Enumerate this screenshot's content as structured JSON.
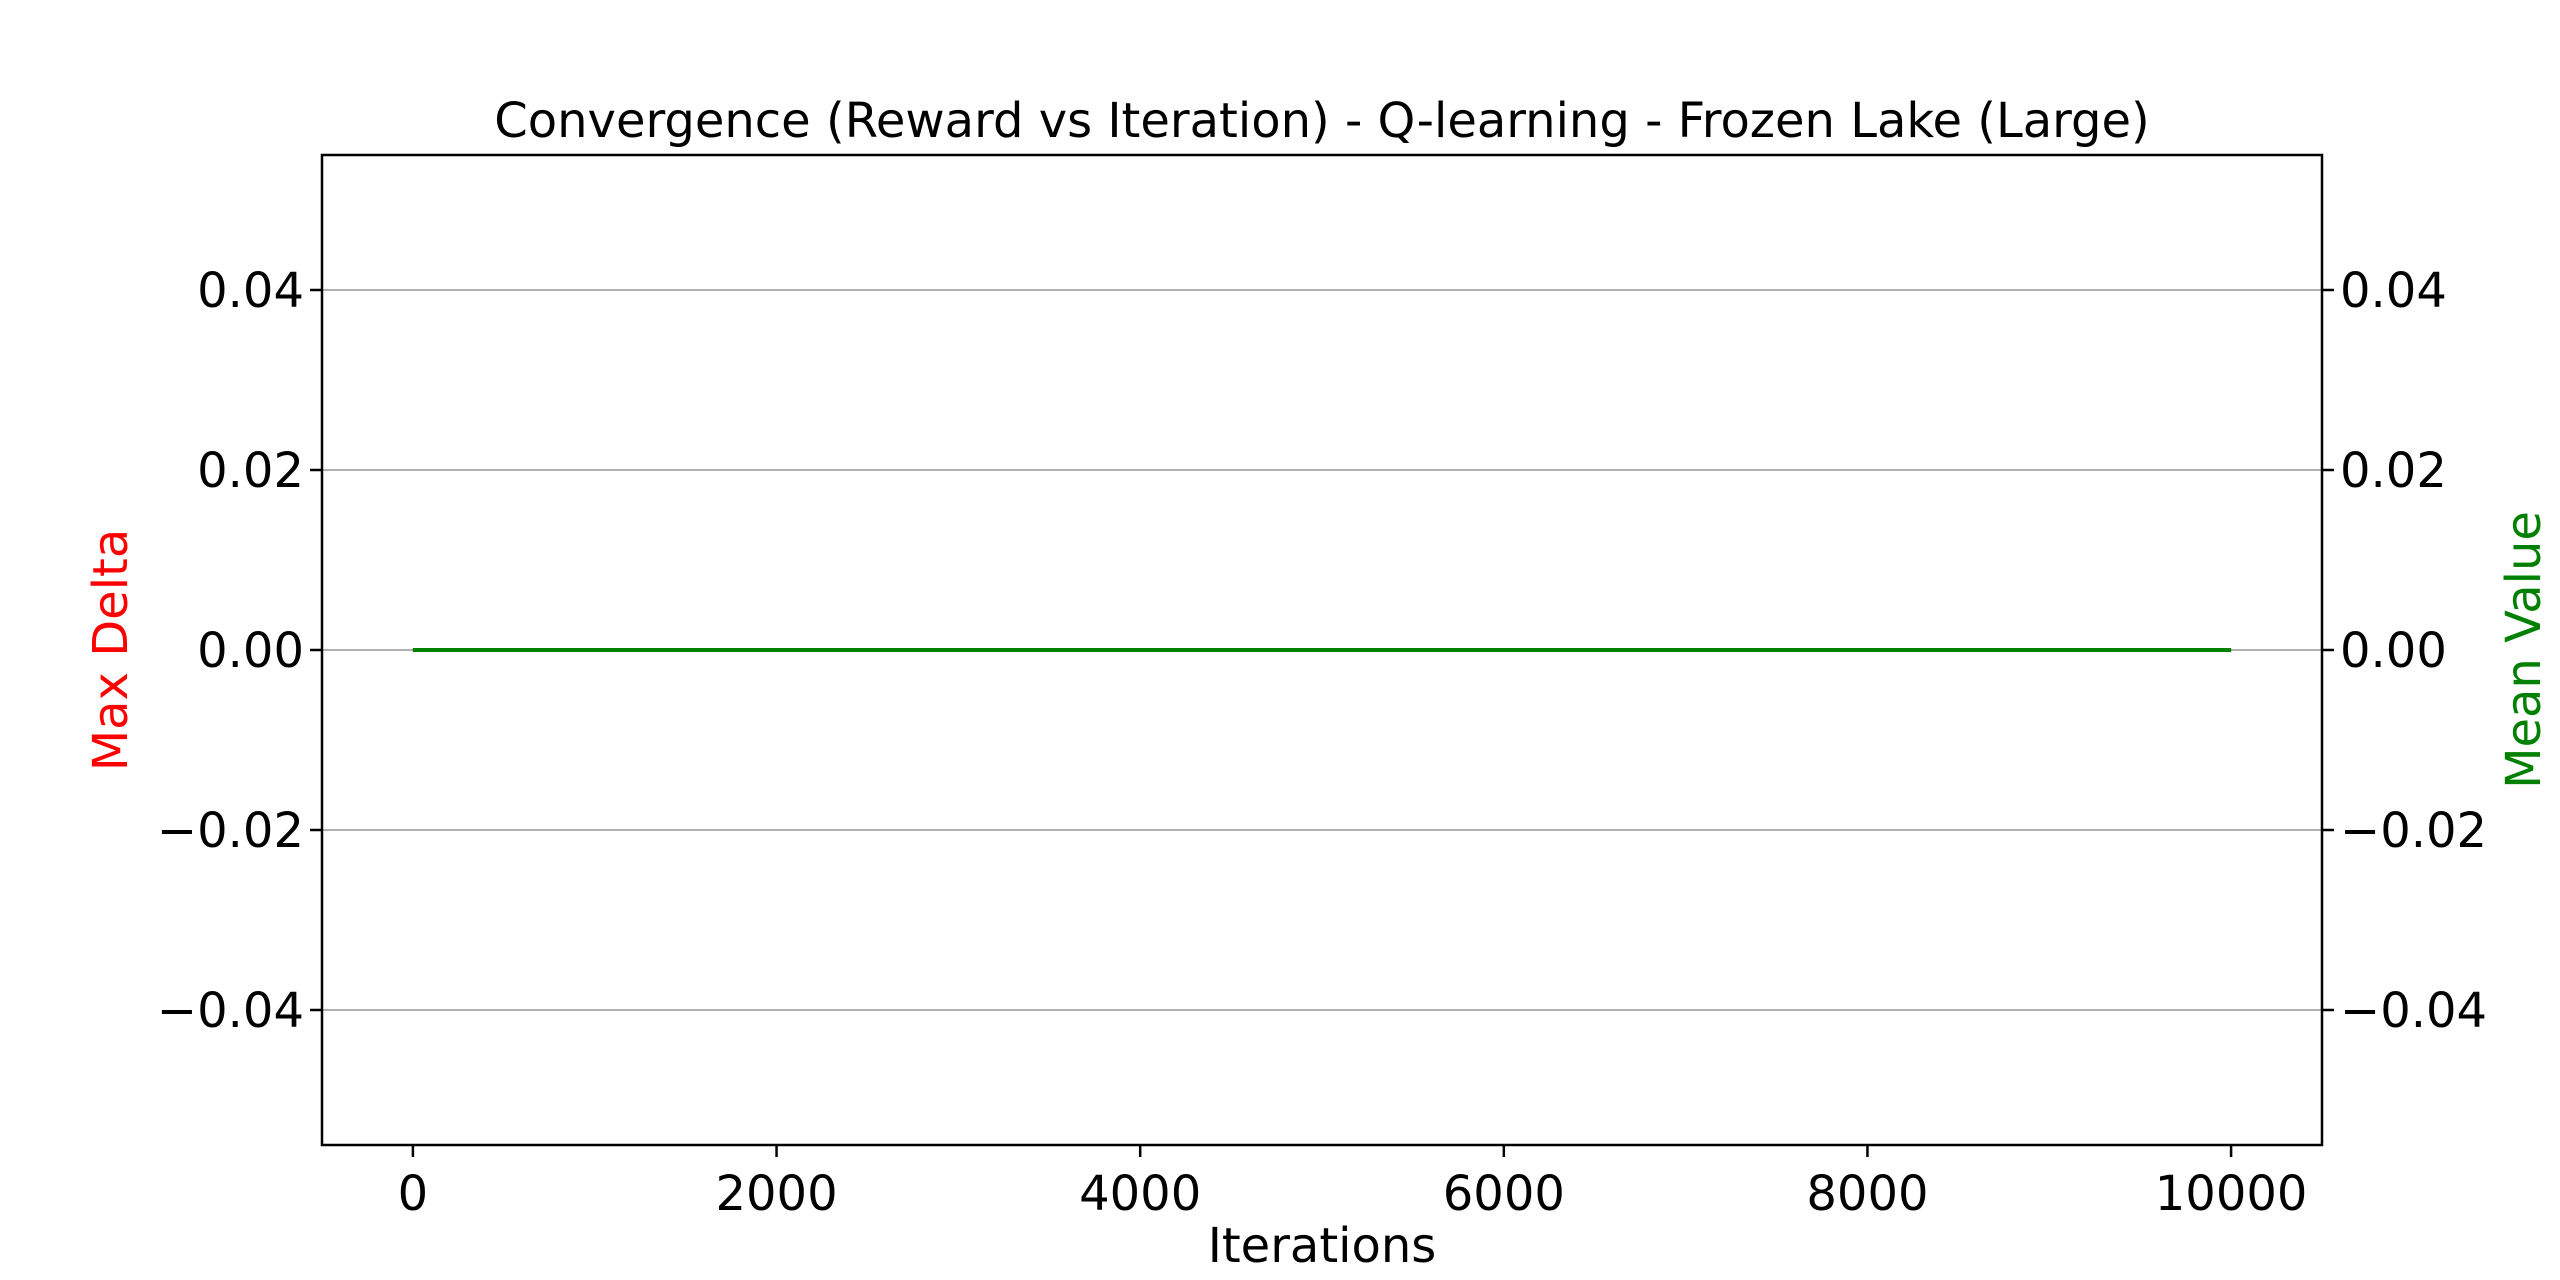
{
  "chart_data": {
    "type": "line",
    "title": "Convergence (Reward vs Iteration) - Q-learning - Frozen Lake (Large)",
    "xlabel": "Iterations",
    "ylabel": "Max Delta",
    "ylabel_right": "Mean Value",
    "xlim": [
      -500,
      10500
    ],
    "ylim": [
      -0.055,
      0.055
    ],
    "ylim_right": [
      -0.055,
      0.055
    ],
    "x_ticks": [
      0,
      2000,
      4000,
      6000,
      8000,
      10000
    ],
    "y_ticks": [
      0.04,
      0.02,
      0.0,
      -0.02,
      -0.04
    ],
    "y_tick_labels": [
      "0.04",
      "0.02",
      "0.00",
      "−0.02",
      "−0.04"
    ],
    "grid": "horizontal",
    "series": [
      {
        "axis": "left",
        "color": "#ff0000",
        "x": [
          0,
          10000
        ],
        "y": [
          0,
          0
        ]
      },
      {
        "axis": "right",
        "color": "#008000",
        "x": [
          0,
          10000
        ],
        "y": [
          0,
          0
        ]
      }
    ],
    "colors": {
      "left_axis_label": "#ff0000",
      "right_axis_label": "#008000",
      "grid": "#b0b0b0"
    }
  }
}
